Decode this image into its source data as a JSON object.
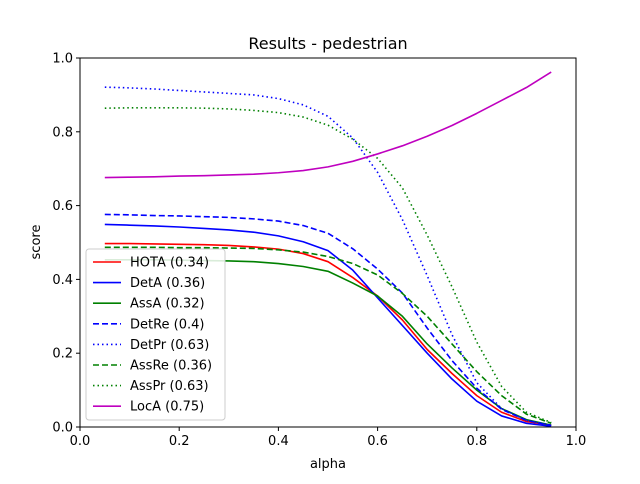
{
  "chart_data": {
    "type": "line",
    "title": "Results - pedestrian",
    "xlabel": "alpha",
    "ylabel": "score",
    "xlim": [
      0.0,
      1.0
    ],
    "ylim": [
      0.0,
      1.0
    ],
    "xticks": [
      "0.0",
      "0.2",
      "0.4",
      "0.6",
      "0.8",
      "1.0"
    ],
    "yticks": [
      "0.0",
      "0.2",
      "0.4",
      "0.6",
      "0.8",
      "1.0"
    ],
    "grid": false,
    "legend_position": "lower-left",
    "x": [
      0.05,
      0.1,
      0.15,
      0.2,
      0.25,
      0.3,
      0.35,
      0.4,
      0.45,
      0.5,
      0.55,
      0.6,
      0.65,
      0.7,
      0.75,
      0.8,
      0.85,
      0.9,
      0.95
    ],
    "series": [
      {
        "name": "HOTA (0.34)",
        "color": "#ff0000",
        "style": "solid",
        "values": [
          0.497,
          0.497,
          0.496,
          0.495,
          0.494,
          0.492,
          0.488,
          0.482,
          0.47,
          0.448,
          0.405,
          0.355,
          0.29,
          0.21,
          0.145,
          0.085,
          0.04,
          0.015,
          0.005
        ]
      },
      {
        "name": "DetA (0.36)",
        "color": "#0000ff",
        "style": "solid",
        "values": [
          0.549,
          0.547,
          0.545,
          0.542,
          0.538,
          0.534,
          0.528,
          0.518,
          0.502,
          0.478,
          0.425,
          0.35,
          0.275,
          0.2,
          0.13,
          0.07,
          0.03,
          0.01,
          0.002
        ]
      },
      {
        "name": "AssA (0.32)",
        "color": "#008000",
        "style": "solid",
        "values": [
          0.453,
          0.453,
          0.453,
          0.452,
          0.451,
          0.45,
          0.448,
          0.443,
          0.435,
          0.422,
          0.39,
          0.355,
          0.3,
          0.225,
          0.16,
          0.1,
          0.05,
          0.02,
          0.005
        ]
      },
      {
        "name": "DetRe (0.4)",
        "color": "#0000ff",
        "style": "dashed",
        "values": [
          0.576,
          0.575,
          0.573,
          0.572,
          0.57,
          0.568,
          0.564,
          0.558,
          0.546,
          0.525,
          0.483,
          0.428,
          0.363,
          0.268,
          0.18,
          0.105,
          0.048,
          0.018,
          0.004
        ]
      },
      {
        "name": "DetPr (0.63)",
        "color": "#0000ff",
        "style": "dotted",
        "values": [
          0.921,
          0.919,
          0.916,
          0.912,
          0.908,
          0.904,
          0.9,
          0.89,
          0.873,
          0.842,
          0.783,
          0.69,
          0.562,
          0.41,
          0.25,
          0.12,
          0.05,
          0.018,
          0.005
        ]
      },
      {
        "name": "AssRe (0.36)",
        "color": "#008000",
        "style": "dashed",
        "values": [
          0.487,
          0.487,
          0.487,
          0.486,
          0.486,
          0.485,
          0.484,
          0.48,
          0.474,
          0.462,
          0.443,
          0.412,
          0.362,
          0.3,
          0.225,
          0.15,
          0.085,
          0.035,
          0.01
        ]
      },
      {
        "name": "AssPr (0.63)",
        "color": "#008000",
        "style": "dotted",
        "values": [
          0.864,
          0.865,
          0.865,
          0.865,
          0.864,
          0.862,
          0.858,
          0.852,
          0.84,
          0.818,
          0.78,
          0.728,
          0.648,
          0.52,
          0.38,
          0.23,
          0.11,
          0.04,
          0.012
        ]
      },
      {
        "name": "LocA (0.75)",
        "color": "#bf00bf",
        "style": "solid",
        "values": [
          0.676,
          0.677,
          0.678,
          0.68,
          0.681,
          0.683,
          0.685,
          0.689,
          0.695,
          0.705,
          0.72,
          0.74,
          0.762,
          0.788,
          0.817,
          0.85,
          0.885,
          0.92,
          0.962
        ]
      }
    ]
  }
}
